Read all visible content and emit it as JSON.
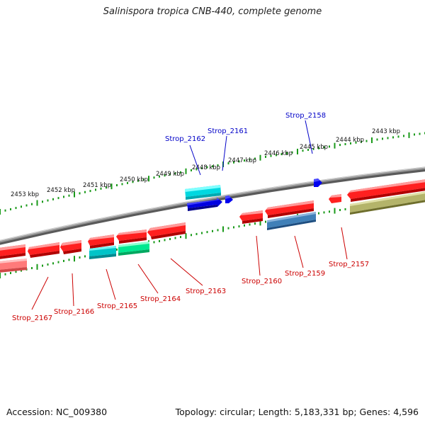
{
  "title": "Salinispora tropica CNB-440, complete genome",
  "accession": "Accession: NC_009380",
  "summary": "Topology: circular; Length: 5,183,331 bp; Genes: 4,596",
  "colors": {
    "backbone": "#8a8a8a",
    "tick": "#1a9a1a",
    "tick_label": "#111111",
    "forward_label": "#0000c8",
    "reverse_label": "#cc0000",
    "cds_red": "#ff1a1a",
    "cds_blue": "#0000ee",
    "cds_cyan": "#00e0e8",
    "cds_teal": "#00c4c4",
    "cds_green": "#00e890",
    "cds_steel": "#3c78b0",
    "cds_pink": "#ff8080",
    "cds_olive": "#b4b464"
  },
  "scale_labels": [
    "2443 kbp",
    "2444 kbp",
    "2445 kbp",
    "2446 kbp",
    "2447 kbp",
    "2448 kbp",
    "2449 kbp",
    "2450 kbp",
    "2451 kbp",
    "2452 kbp",
    "2453 kbp"
  ],
  "forward_labels": [
    "Strop_2162",
    "Strop_2161",
    "Strop_2158"
  ],
  "reverse_labels": [
    "Strop_2167",
    "Strop_2166",
    "Strop_2165",
    "Strop_2164",
    "Strop_2163",
    "Strop_2160",
    "Strop_2159",
    "Strop_2157"
  ],
  "features": [
    {
      "strand": "+",
      "color": "cds_cyan",
      "ring": "outer"
    },
    {
      "strand": "+",
      "color": "cds_blue",
      "ring": "inner",
      "label": "Strop_2162"
    },
    {
      "strand": "+",
      "color": "cds_blue",
      "ring": "inner",
      "label": "Strop_2161"
    },
    {
      "strand": "+",
      "color": "cds_blue",
      "ring": "inner",
      "label": "Strop_2158"
    },
    {
      "strand": "-",
      "color": "cds_red",
      "label": "Strop_2157"
    },
    {
      "strand": "-",
      "color": "cds_red",
      "label": "Strop_2159"
    },
    {
      "strand": "-",
      "color": "cds_steel",
      "label": "Strop_2159"
    },
    {
      "strand": "-",
      "color": "cds_red",
      "label": "Strop_2160"
    },
    {
      "strand": "-",
      "color": "cds_red",
      "label": "Strop_2163"
    },
    {
      "strand": "-",
      "color": "cds_green",
      "label": "Strop_2164"
    },
    {
      "strand": "-",
      "color": "cds_teal",
      "label": "Strop_2165"
    },
    {
      "strand": "-",
      "color": "cds_red",
      "label": "Strop_2166"
    },
    {
      "strand": "-",
      "color": "cds_red",
      "label": "Strop_2167"
    },
    {
      "strand": "-",
      "color": "cds_pink",
      "label": "Strop_2167"
    },
    {
      "strand": "-",
      "color": "cds_olive",
      "label": "Strop_2157"
    }
  ]
}
